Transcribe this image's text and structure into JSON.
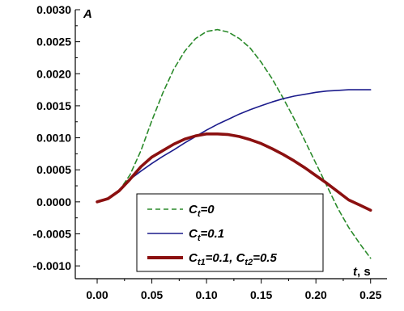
{
  "chart_data": {
    "type": "line",
    "ylabel": "A",
    "xlabel_var": "t",
    "xlabel_unit": ", s",
    "xlim": [
      -0.02,
      0.265
    ],
    "ylim": [
      -0.0012,
      0.003
    ],
    "xticks": [
      0.0,
      0.05,
      0.1,
      0.15,
      0.2,
      0.25
    ],
    "xtick_labels": [
      "0.00",
      "0.05",
      "0.10",
      "0.15",
      "0.20",
      "0.25"
    ],
    "yticks": [
      -0.001,
      -0.0005,
      0.0,
      0.0005,
      0.001,
      0.0015,
      0.002,
      0.0025,
      0.003
    ],
    "ytick_labels": [
      "-0.0010",
      "-0.0005",
      "0.0000",
      "0.0005",
      "0.0010",
      "0.0015",
      "0.0020",
      "0.0025",
      "0.0030"
    ],
    "grid": false,
    "legend_position": "bottom-center",
    "series": [
      {
        "name": "C_t=0",
        "legend_main": "C",
        "legend_sub": "t",
        "legend_rest": "=0",
        "color": "#2a8a2a",
        "style": "dashed",
        "x": [
          0.0,
          0.01,
          0.02,
          0.03,
          0.04,
          0.05,
          0.06,
          0.07,
          0.08,
          0.09,
          0.1,
          0.11,
          0.12,
          0.13,
          0.14,
          0.15,
          0.16,
          0.17,
          0.18,
          0.19,
          0.2,
          0.21,
          0.22,
          0.23,
          0.24,
          0.25
        ],
        "y": [
          0.0,
          5e-05,
          0.00017,
          0.00042,
          0.0008,
          0.00127,
          0.0017,
          0.00207,
          0.00235,
          0.00255,
          0.00266,
          0.00269,
          0.00265,
          0.00255,
          0.0024,
          0.00218,
          0.00192,
          0.00162,
          0.0013,
          0.00095,
          0.0006,
          0.00025,
          -0.0001,
          -0.0004,
          -0.00065,
          -0.00088
        ]
      },
      {
        "name": "C_t=0.1",
        "legend_main": "C",
        "legend_sub": "t",
        "legend_rest": "=0.1",
        "color": "#1c1c8c",
        "style": "solid",
        "x": [
          0.0,
          0.01,
          0.02,
          0.03,
          0.04,
          0.05,
          0.06,
          0.07,
          0.08,
          0.09,
          0.1,
          0.11,
          0.12,
          0.13,
          0.14,
          0.15,
          0.16,
          0.17,
          0.18,
          0.19,
          0.2,
          0.21,
          0.22,
          0.23,
          0.24,
          0.25
        ],
        "y": [
          0.0,
          5e-05,
          0.00017,
          0.00035,
          0.00048,
          0.0006,
          0.00071,
          0.00081,
          0.00092,
          0.00102,
          0.00112,
          0.00121,
          0.00129,
          0.00137,
          0.00144,
          0.0015,
          0.00156,
          0.00161,
          0.00165,
          0.00168,
          0.00171,
          0.00173,
          0.00174,
          0.00175,
          0.00175,
          0.00175
        ]
      },
      {
        "name": "C_t1=0.1, C_t2=0.5",
        "legend_main": "C",
        "legend_sub": "t1",
        "legend_rest": "=0.1, C",
        "legend_sub2": "t2",
        "legend_rest2": "=0.5",
        "color": "#8b1010",
        "style": "solid-thick",
        "x": [
          0.0,
          0.01,
          0.02,
          0.03,
          0.04,
          0.05,
          0.06,
          0.07,
          0.08,
          0.09,
          0.1,
          0.11,
          0.12,
          0.13,
          0.14,
          0.15,
          0.16,
          0.17,
          0.18,
          0.19,
          0.2,
          0.21,
          0.22,
          0.23,
          0.24,
          0.25
        ],
        "y": [
          0.0,
          5e-05,
          0.00017,
          0.00035,
          0.00055,
          0.0007,
          0.0008,
          0.0009,
          0.00098,
          0.00103,
          0.00106,
          0.00106,
          0.00105,
          0.00102,
          0.00097,
          0.00091,
          0.00083,
          0.00074,
          0.00064,
          0.00053,
          0.00041,
          0.00029,
          0.00016,
          3e-05,
          -5e-05,
          -0.00013
        ]
      }
    ]
  }
}
